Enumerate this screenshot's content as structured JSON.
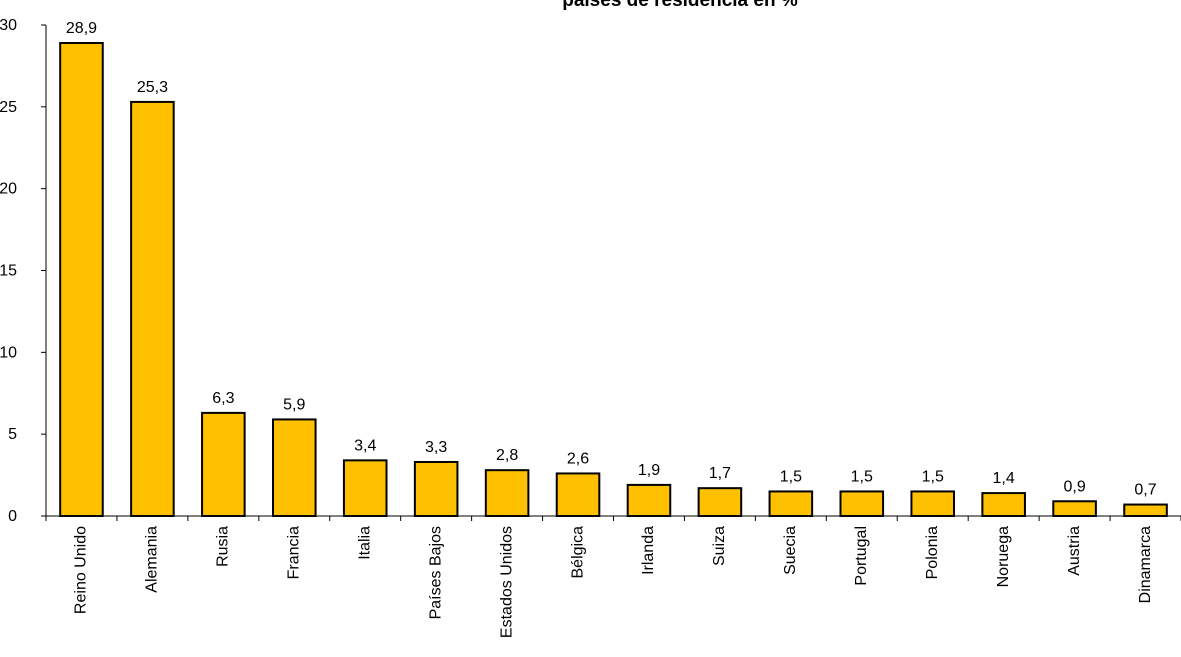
{
  "chart_data": {
    "type": "bar",
    "title": "países de residencia en %",
    "categories": [
      "Reino Unido",
      "Alemania",
      "Rusia",
      "Francia",
      "Italia",
      "Países Bajos",
      "Estados Unidos",
      "Bélgica",
      "Irlanda",
      "Suiza",
      "Suecia",
      "Portugal",
      "Polonia",
      "Noruega",
      "Austria",
      "Dinamarca"
    ],
    "values": [
      28.9,
      25.3,
      6.3,
      5.9,
      3.4,
      3.3,
      2.8,
      2.6,
      1.9,
      1.7,
      1.5,
      1.5,
      1.5,
      1.4,
      0.9,
      0.7
    ],
    "value_labels": [
      "28,9",
      "25,3",
      "6,3",
      "5,9",
      "3,4",
      "3,3",
      "2,8",
      "2,6",
      "1,9",
      "1,7",
      "1,5",
      "1,5",
      "1,5",
      "1,4",
      "0,9",
      "0,7"
    ],
    "ylim": [
      0,
      30
    ],
    "yticks": [
      0,
      5,
      10,
      15,
      20,
      25,
      30
    ],
    "xlabel": "",
    "ylabel": "",
    "grid": false,
    "legend": "none",
    "bar_color": "#FFC000",
    "bar_edge_color": "#000000"
  }
}
